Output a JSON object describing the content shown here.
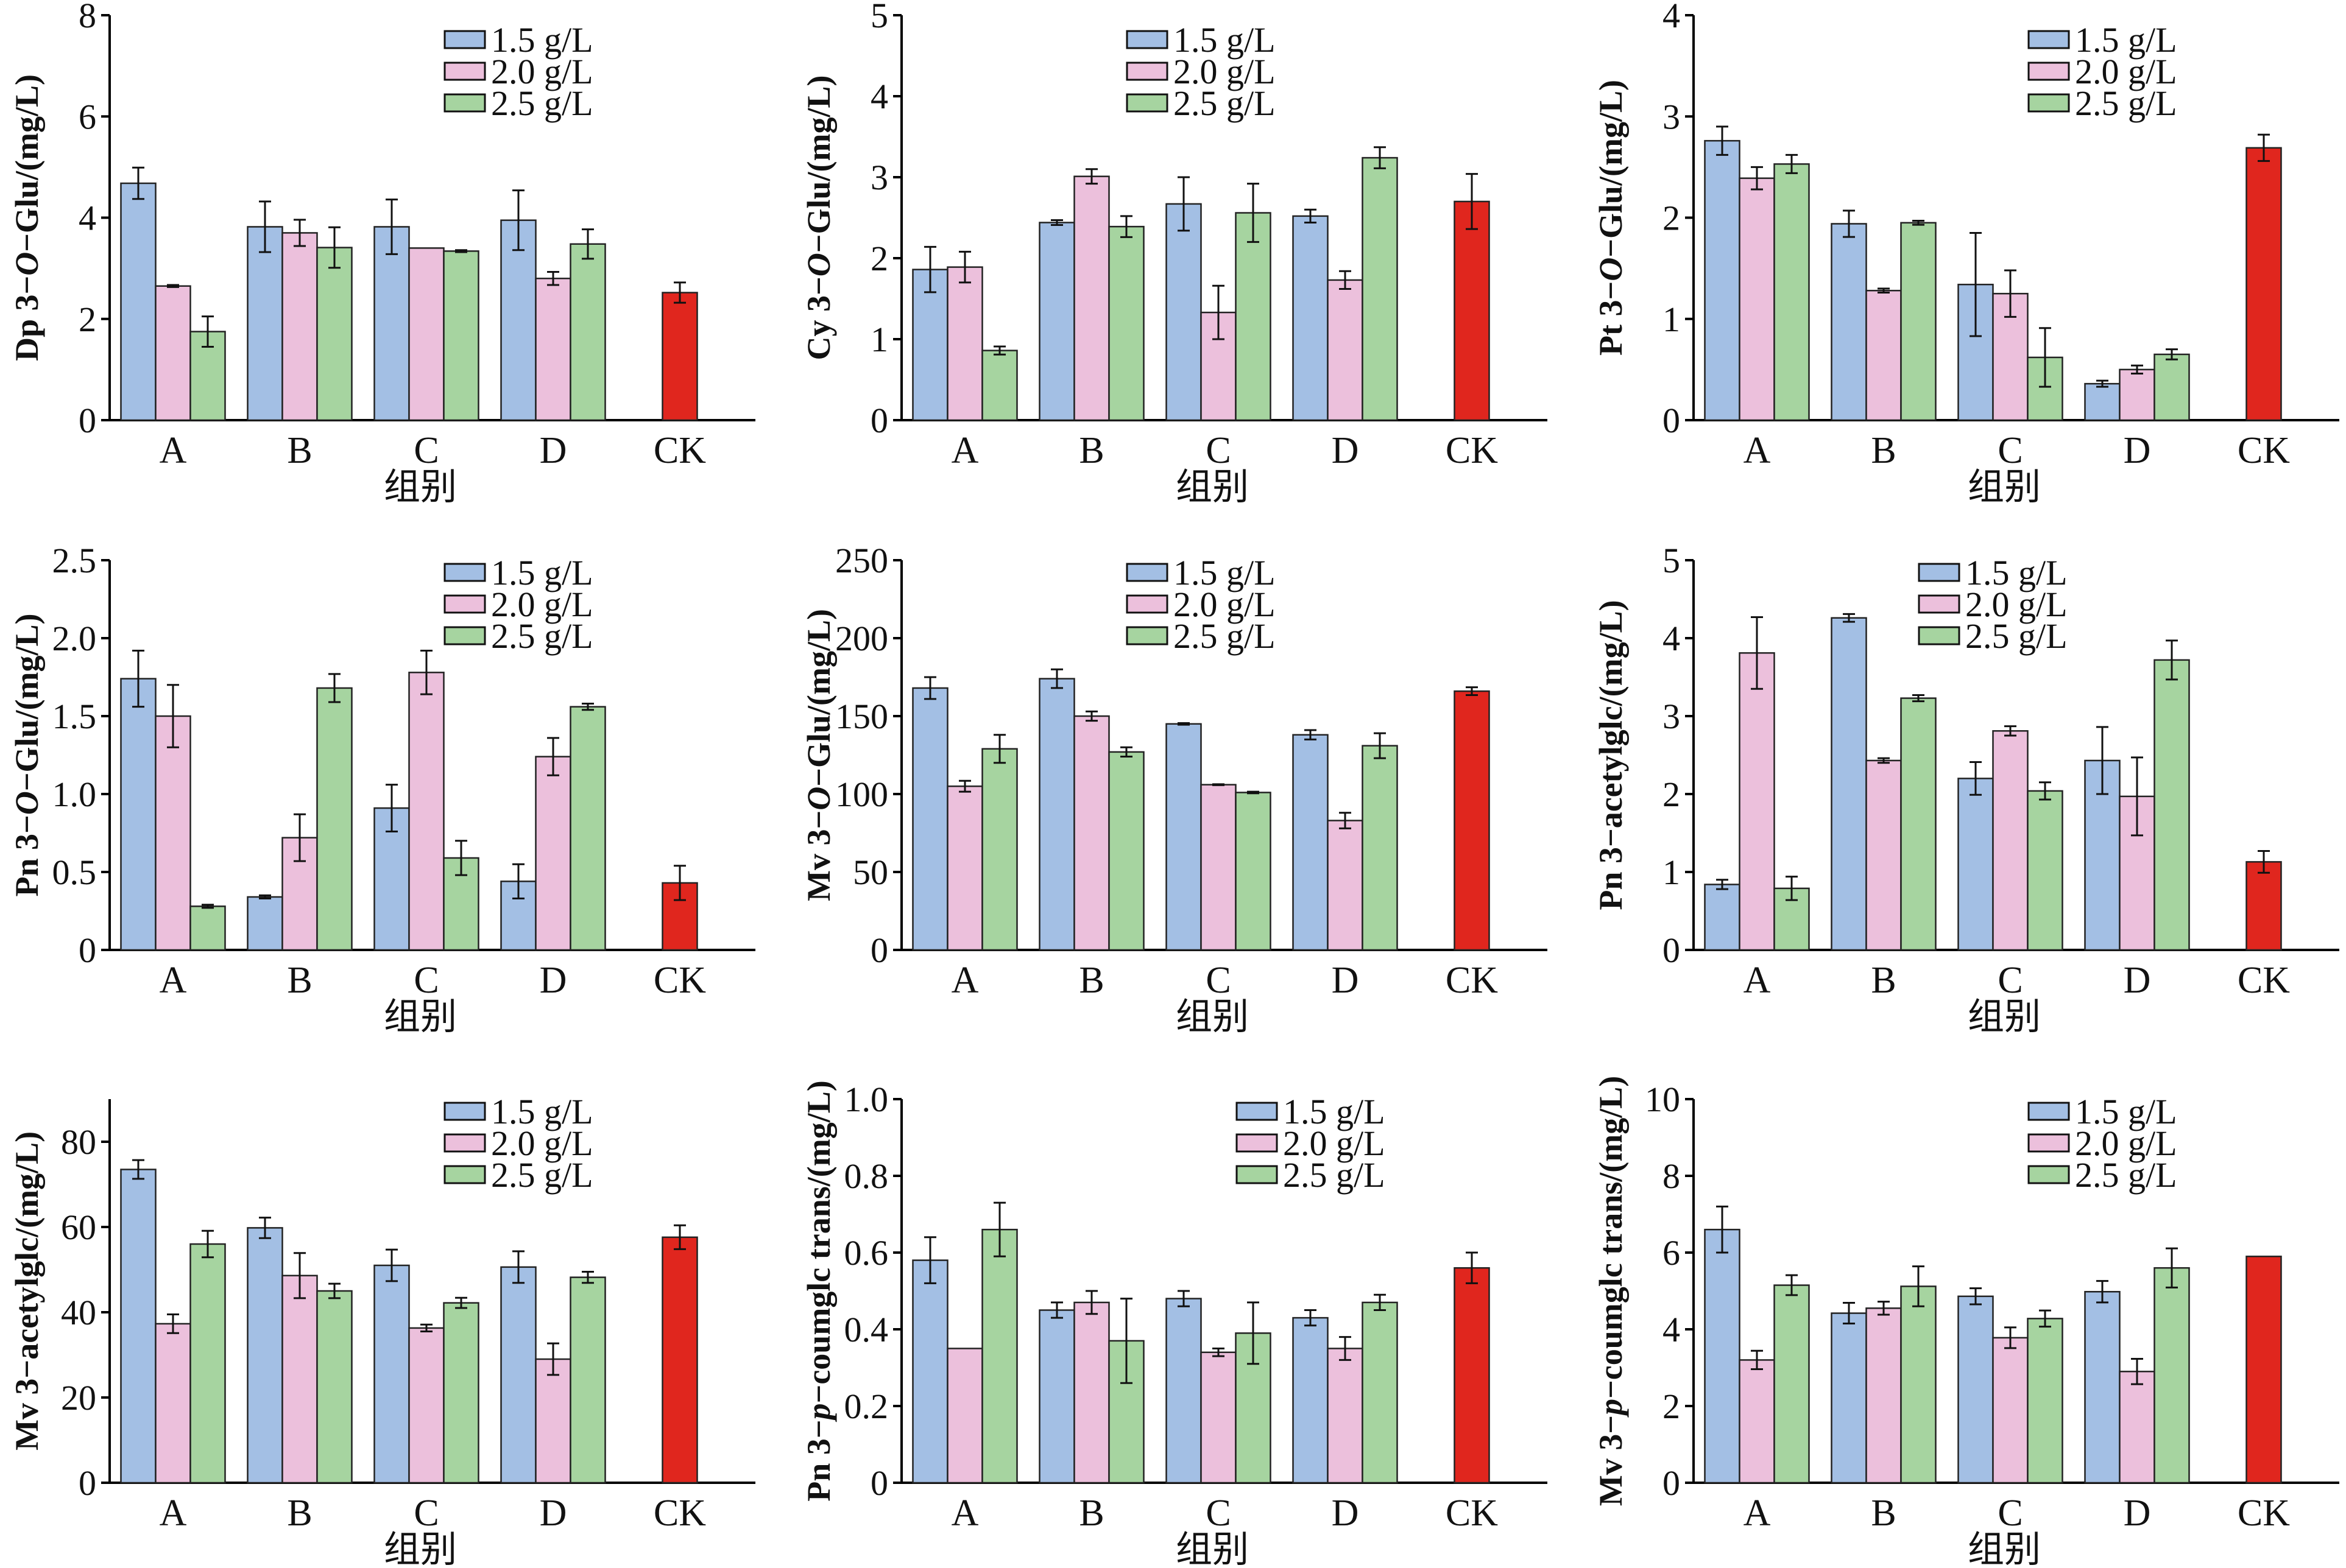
{
  "legend": {
    "series_names": [
      "1.5 g/L",
      "2.0 g/L",
      "2.5 g/L"
    ],
    "series_colors": [
      "#a3bfe4",
      "#ecc0dc",
      "#a6d4a0"
    ],
    "control_color": "#e0261e"
  },
  "chart_data": [
    {
      "type": "bar",
      "title": "",
      "ylabel": "Dp 3-O-Glu/(mg/L)",
      "ylabel_parts": [
        "Dp 3−",
        "O",
        "−Glu/(mg/L)"
      ],
      "xlabel": "组别",
      "categories": [
        "A",
        "B",
        "C",
        "D",
        "CK"
      ],
      "ylim": [
        0,
        8
      ],
      "yticks": [
        0,
        2,
        4,
        6,
        8
      ],
      "ytick_labels": [
        "0",
        "2",
        "4",
        "6",
        "8"
      ],
      "legend_position": "top-right",
      "series": [
        {
          "name": "1.5 g/L",
          "values": [
            4.68,
            3.82,
            3.82,
            3.95
          ],
          "errors": [
            0.31,
            0.5,
            0.54,
            0.59
          ]
        },
        {
          "name": "2.0 g/L",
          "values": [
            2.65,
            3.7,
            3.4,
            2.8
          ],
          "errors": [
            0.02,
            0.26,
            0.0,
            0.13
          ]
        },
        {
          "name": "2.5 g/L",
          "values": [
            1.75,
            3.41,
            3.34,
            3.48
          ],
          "errors": [
            0.3,
            0.4,
            0.02,
            0.29
          ]
        }
      ],
      "control": {
        "name": "CK",
        "value": 2.52,
        "error": 0.2
      }
    },
    {
      "type": "bar",
      "title": "",
      "ylabel": "Cy 3-O-Glu/(mg/L)",
      "ylabel_parts": [
        "Cy 3−",
        "O",
        "−Glu/(mg/L)"
      ],
      "xlabel": "组别",
      "categories": [
        "A",
        "B",
        "C",
        "D",
        "CK"
      ],
      "ylim": [
        0,
        5
      ],
      "yticks": [
        0,
        1,
        2,
        3,
        4,
        5
      ],
      "ytick_labels": [
        "0",
        "1",
        "2",
        "3",
        "4",
        "5"
      ],
      "legend_position": "top-center",
      "series": [
        {
          "name": "1.5 g/L",
          "values": [
            1.86,
            2.44,
            2.67,
            2.52
          ],
          "errors": [
            0.28,
            0.03,
            0.33,
            0.08
          ]
        },
        {
          "name": "2.0 g/L",
          "values": [
            1.89,
            3.01,
            1.33,
            1.73
          ],
          "errors": [
            0.19,
            0.09,
            0.33,
            0.11
          ]
        },
        {
          "name": "2.5 g/L",
          "values": [
            0.86,
            2.39,
            2.56,
            3.24
          ],
          "errors": [
            0.05,
            0.13,
            0.36,
            0.13
          ]
        }
      ],
      "control": {
        "name": "CK",
        "value": 2.7,
        "error": 0.34
      }
    },
    {
      "type": "bar",
      "title": "",
      "ylabel": "Pt 3-O-Glu/(mg/L)",
      "ylabel_parts": [
        "Pt 3−",
        "O",
        "−Glu/(mg/L)"
      ],
      "xlabel": "组别",
      "categories": [
        "A",
        "B",
        "C",
        "D",
        "CK"
      ],
      "ylim": [
        0,
        4
      ],
      "yticks": [
        0,
        1,
        2,
        3,
        4
      ],
      "ytick_labels": [
        "0",
        "1",
        "2",
        "3",
        "4"
      ],
      "legend_position": "top-right",
      "series": [
        {
          "name": "1.5 g/L",
          "values": [
            2.76,
            1.94,
            1.34,
            0.36
          ],
          "errors": [
            0.14,
            0.13,
            0.51,
            0.03
          ]
        },
        {
          "name": "2.0 g/L",
          "values": [
            2.39,
            1.28,
            1.25,
            0.5
          ],
          "errors": [
            0.11,
            0.02,
            0.23,
            0.04
          ]
        },
        {
          "name": "2.5 g/L",
          "values": [
            2.53,
            1.95,
            0.62,
            0.65
          ],
          "errors": [
            0.09,
            0.02,
            0.29,
            0.05
          ]
        }
      ],
      "control": {
        "name": "CK",
        "value": 2.69,
        "error": 0.13
      }
    },
    {
      "type": "bar",
      "title": "",
      "ylabel": "Pn 3-O-Glu/(mg/L)",
      "ylabel_parts": [
        "Pn 3−",
        "O",
        "−Glu/(mg/L)"
      ],
      "xlabel": "组别",
      "categories": [
        "A",
        "B",
        "C",
        "D",
        "CK"
      ],
      "ylim": [
        0,
        2.5
      ],
      "yticks": [
        0,
        0.5,
        1.0,
        1.5,
        2.0,
        2.5
      ],
      "ytick_labels": [
        "0",
        "0.5",
        "1.0",
        "1.5",
        "2.0",
        "2.5"
      ],
      "legend_position": "top-right",
      "series": [
        {
          "name": "1.5 g/L",
          "values": [
            1.74,
            0.34,
            0.91,
            0.44
          ],
          "errors": [
            0.18,
            0.01,
            0.15,
            0.11
          ]
        },
        {
          "name": "2.0 g/L",
          "values": [
            1.5,
            0.72,
            1.78,
            1.24
          ],
          "errors": [
            0.2,
            0.15,
            0.14,
            0.12
          ]
        },
        {
          "name": "2.5 g/L",
          "values": [
            0.28,
            1.68,
            0.59,
            1.56
          ],
          "errors": [
            0.01,
            0.09,
            0.11,
            0.02
          ]
        }
      ],
      "control": {
        "name": "CK",
        "value": 0.43,
        "error": 0.11
      }
    },
    {
      "type": "bar",
      "title": "",
      "ylabel": "Mv 3-O-Glu/(mg/L)",
      "ylabel_parts": [
        "Mv 3−",
        "O",
        "−Glu/(mg/L)"
      ],
      "xlabel": "组别",
      "categories": [
        "A",
        "B",
        "C",
        "D",
        "CK"
      ],
      "ylim": [
        0,
        250
      ],
      "yticks": [
        0,
        50,
        100,
        150,
        200,
        250
      ],
      "ytick_labels": [
        "0",
        "50",
        "100",
        "150",
        "200",
        "250"
      ],
      "legend_position": "top-center",
      "series": [
        {
          "name": "1.5 g/L",
          "values": [
            168,
            174,
            145,
            138
          ],
          "errors": [
            7,
            6,
            0.5,
            3
          ]
        },
        {
          "name": "2.0 g/L",
          "values": [
            105,
            150,
            106,
            83
          ],
          "errors": [
            3.5,
            3,
            0.3,
            5
          ]
        },
        {
          "name": "2.5 g/L",
          "values": [
            129,
            127,
            101,
            131
          ],
          "errors": [
            9,
            3,
            0.5,
            8
          ]
        }
      ],
      "control": {
        "name": "CK",
        "value": 166,
        "error": 2.5
      }
    },
    {
      "type": "bar",
      "title": "",
      "ylabel": "Pn 3-acetylglc/(mg/L)",
      "ylabel_parts": [
        "Pn 3−acetylglc/(mg/L)",
        "",
        ""
      ],
      "xlabel": "组别",
      "categories": [
        "A",
        "B",
        "C",
        "D",
        "CK"
      ],
      "ylim": [
        0,
        5
      ],
      "yticks": [
        0,
        1,
        2,
        3,
        4,
        5
      ],
      "ytick_labels": [
        "0",
        "1",
        "2",
        "3",
        "4",
        "5"
      ],
      "legend_position": "top-center",
      "series": [
        {
          "name": "1.5 g/L",
          "values": [
            0.84,
            4.26,
            2.2,
            2.43
          ],
          "errors": [
            0.06,
            0.05,
            0.21,
            0.43
          ]
        },
        {
          "name": "2.0 g/L",
          "values": [
            3.81,
            2.43,
            2.81,
            1.97
          ],
          "errors": [
            0.46,
            0.03,
            0.06,
            0.5
          ]
        },
        {
          "name": "2.5 g/L",
          "values": [
            0.79,
            3.23,
            2.04,
            3.72
          ],
          "errors": [
            0.15,
            0.04,
            0.11,
            0.25
          ]
        }
      ],
      "control": {
        "name": "CK",
        "value": 1.13,
        "error": 0.14
      }
    },
    {
      "type": "bar",
      "title": "",
      "ylabel": "Mv 3-acetylglc/(mg/L)",
      "ylabel_parts": [
        "Mv 3−acetylglc/(mg/L)",
        "",
        ""
      ],
      "xlabel": "组别",
      "categories": [
        "A",
        "B",
        "C",
        "D",
        "CK"
      ],
      "ylim": [
        0,
        90
      ],
      "yticks": [
        0,
        20,
        40,
        60,
        80
      ],
      "ytick_labels": [
        "0",
        "20",
        "40",
        "60",
        "80"
      ],
      "legend_position": "top-right",
      "series": [
        {
          "name": "1.5 g/L",
          "values": [
            73.5,
            59.8,
            51.0,
            50.6
          ],
          "errors": [
            2.2,
            2.4,
            3.7,
            3.7
          ]
        },
        {
          "name": "2.0 g/L",
          "values": [
            37.3,
            48.6,
            36.3,
            29.0
          ],
          "errors": [
            2.2,
            5.3,
            0.8,
            3.7
          ]
        },
        {
          "name": "2.5 g/L",
          "values": [
            56.0,
            45.0,
            42.2,
            48.2
          ],
          "errors": [
            3.1,
            1.7,
            1.2,
            1.3
          ]
        }
      ],
      "control": {
        "name": "CK",
        "value": 57.6,
        "error": 2.8
      }
    },
    {
      "type": "bar",
      "title": "",
      "ylabel": "Pn 3-p-coumglc trans/(mg/L)",
      "ylabel_parts": [
        "Pn 3−",
        "p",
        "−coumglc trans/(mg/L)"
      ],
      "xlabel": "组别",
      "categories": [
        "A",
        "B",
        "C",
        "D",
        "CK"
      ],
      "ylim": [
        0,
        1.0
      ],
      "yticks": [
        0,
        0.2,
        0.4,
        0.6,
        0.8,
        1.0
      ],
      "ytick_labels": [
        "0",
        "0.2",
        "0.4",
        "0.6",
        "0.8",
        "1.0"
      ],
      "legend_position": "top-right",
      "series": [
        {
          "name": "1.5 g/L",
          "values": [
            0.58,
            0.45,
            0.48,
            0.43
          ],
          "errors": [
            0.06,
            0.02,
            0.02,
            0.02
          ]
        },
        {
          "name": "2.0 g/L",
          "values": [
            0.35,
            0.47,
            0.34,
            0.35
          ],
          "errors": [
            0.0,
            0.03,
            0.01,
            0.03
          ]
        },
        {
          "name": "2.5 g/L",
          "values": [
            0.66,
            0.37,
            0.39,
            0.47
          ],
          "errors": [
            0.07,
            0.11,
            0.08,
            0.02
          ]
        }
      ],
      "control": {
        "name": "CK",
        "value": 0.56,
        "error": 0.04
      }
    },
    {
      "type": "bar",
      "title": "",
      "ylabel": "Mv 3-p-coumglc trans/(mg/L)",
      "ylabel_parts": [
        "Mv 3−",
        "p",
        "−coumglc trans/(mg/L)"
      ],
      "xlabel": "组别",
      "categories": [
        "A",
        "B",
        "C",
        "D",
        "CK"
      ],
      "ylim": [
        0,
        10
      ],
      "yticks": [
        0,
        2,
        4,
        6,
        8,
        10
      ],
      "ytick_labels": [
        "0",
        "2",
        "4",
        "6",
        "8",
        "10"
      ],
      "legend_position": "top-right",
      "series": [
        {
          "name": "1.5 g/L",
          "values": [
            6.6,
            4.42,
            4.86,
            4.98
          ],
          "errors": [
            0.6,
            0.27,
            0.21,
            0.28
          ]
        },
        {
          "name": "2.0 g/L",
          "values": [
            3.2,
            4.55,
            3.78,
            2.9
          ],
          "errors": [
            0.24,
            0.17,
            0.27,
            0.33
          ]
        },
        {
          "name": "2.5 g/L",
          "values": [
            5.15,
            5.12,
            4.28,
            5.6
          ],
          "errors": [
            0.26,
            0.52,
            0.21,
            0.51
          ]
        }
      ],
      "control": {
        "name": "CK",
        "value": 5.9,
        "error": 0.0
      }
    }
  ]
}
